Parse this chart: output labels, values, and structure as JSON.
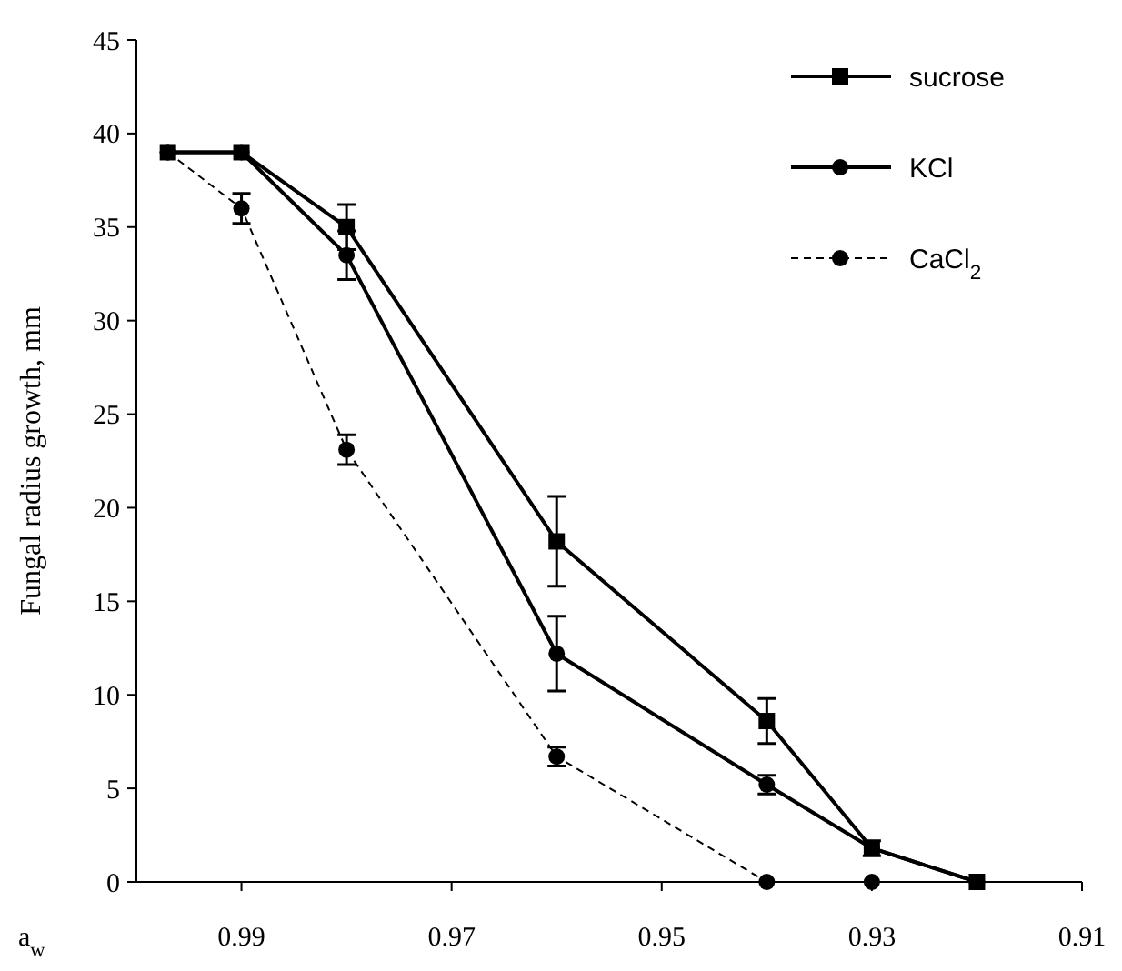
{
  "chart_data": {
    "type": "line",
    "xlabel": "a$_{w}$",
    "ylabel": "Fungal radius growth, mm",
    "x": [
      0.997,
      0.99,
      0.98,
      0.96,
      0.94,
      0.93,
      0.92
    ],
    "xlim": [
      1.0,
      0.91
    ],
    "xticks": [
      0.99,
      0.97,
      0.95,
      0.93,
      0.91
    ],
    "ylim": [
      0,
      45
    ],
    "yticks": [
      0,
      5,
      10,
      15,
      20,
      25,
      30,
      35,
      40,
      45
    ],
    "grid": false,
    "legend": "top right",
    "series": [
      {
        "name": "sucrose",
        "color": "#000000",
        "marker": "square",
        "line_style": "solid",
        "values": [
          39,
          39,
          35,
          18.2,
          8.6,
          1.8,
          0
        ],
        "errors": [
          null,
          null,
          1.2,
          2.4,
          1.2,
          0.4,
          null
        ]
      },
      {
        "name": "KCl",
        "color": "#000000",
        "marker": "circle",
        "line_style": "solid",
        "values": [
          39,
          39,
          33.5,
          12.2,
          5.2,
          1.8,
          0
        ],
        "errors": [
          null,
          null,
          1.3,
          2,
          0.5,
          null,
          null
        ]
      },
      {
        "name": "CaCl$_{2}$",
        "color": "#000000",
        "marker": "circle",
        "line_style": "dashed",
        "x": [
          0.997,
          0.99,
          0.98,
          0.96,
          0.94,
          0.93
        ],
        "values": [
          39,
          36,
          23.1,
          6.7,
          0,
          0
        ],
        "errors": [
          null,
          0.8,
          0.8,
          0.5,
          null,
          null
        ]
      }
    ]
  }
}
